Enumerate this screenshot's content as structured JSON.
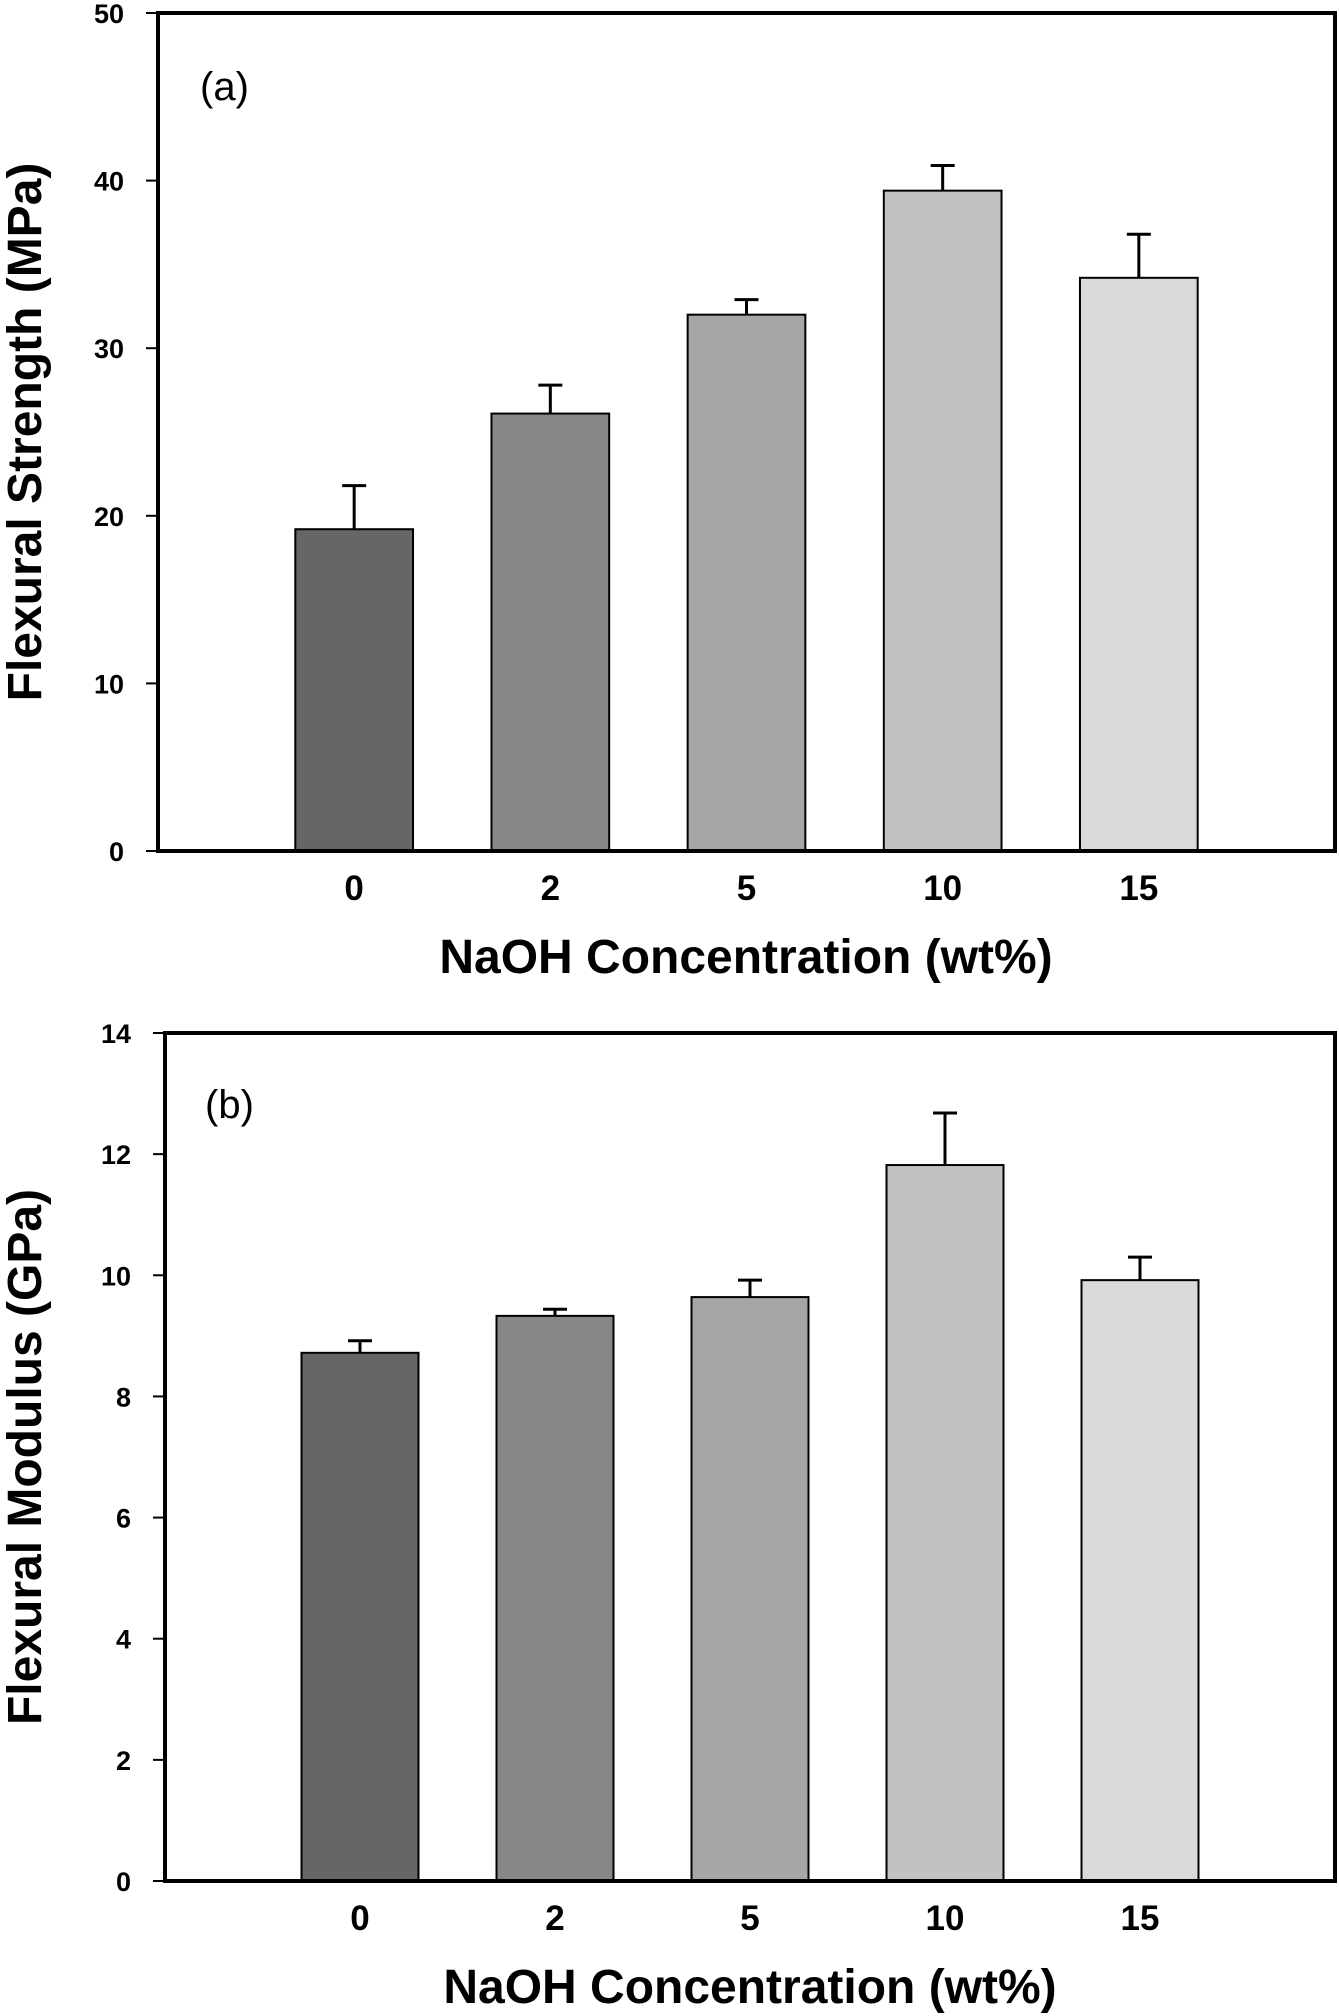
{
  "chart_data": [
    {
      "type": "bar",
      "panel_label": "(a)",
      "title": "",
      "xlabel": "NaOH Concentration (wt%)",
      "ylabel": "Flexural Strength (MPa)",
      "categories": [
        "0",
        "2",
        "5",
        "10",
        "15"
      ],
      "values": [
        19.2,
        26.1,
        32.0,
        39.4,
        34.2
      ],
      "errors": [
        2.6,
        1.7,
        0.9,
        1.5,
        2.6
      ],
      "ylim": [
        0,
        50
      ],
      "yticks": [
        0,
        10,
        20,
        30,
        40,
        50
      ],
      "grid": false,
      "colors": [
        "#666666",
        "#878787",
        "#a6a6a6",
        "#c2c2c2",
        "#d9d9d9"
      ]
    },
    {
      "type": "bar",
      "panel_label": "(b)",
      "title": "",
      "xlabel": "NaOH Concentration (wt%)",
      "ylabel": "Flexural Modulus (GPa)",
      "categories": [
        "0",
        "2",
        "5",
        "10",
        "15"
      ],
      "values": [
        8.72,
        9.33,
        9.64,
        11.82,
        9.92
      ],
      "errors": [
        0.2,
        0.11,
        0.28,
        0.86,
        0.38
      ],
      "ylim": [
        0,
        14
      ],
      "yticks": [
        0,
        2,
        4,
        6,
        8,
        10,
        12,
        14
      ],
      "grid": false,
      "colors": [
        "#666666",
        "#878787",
        "#a6a6a6",
        "#c2c2c2",
        "#d9d9d9"
      ]
    }
  ]
}
